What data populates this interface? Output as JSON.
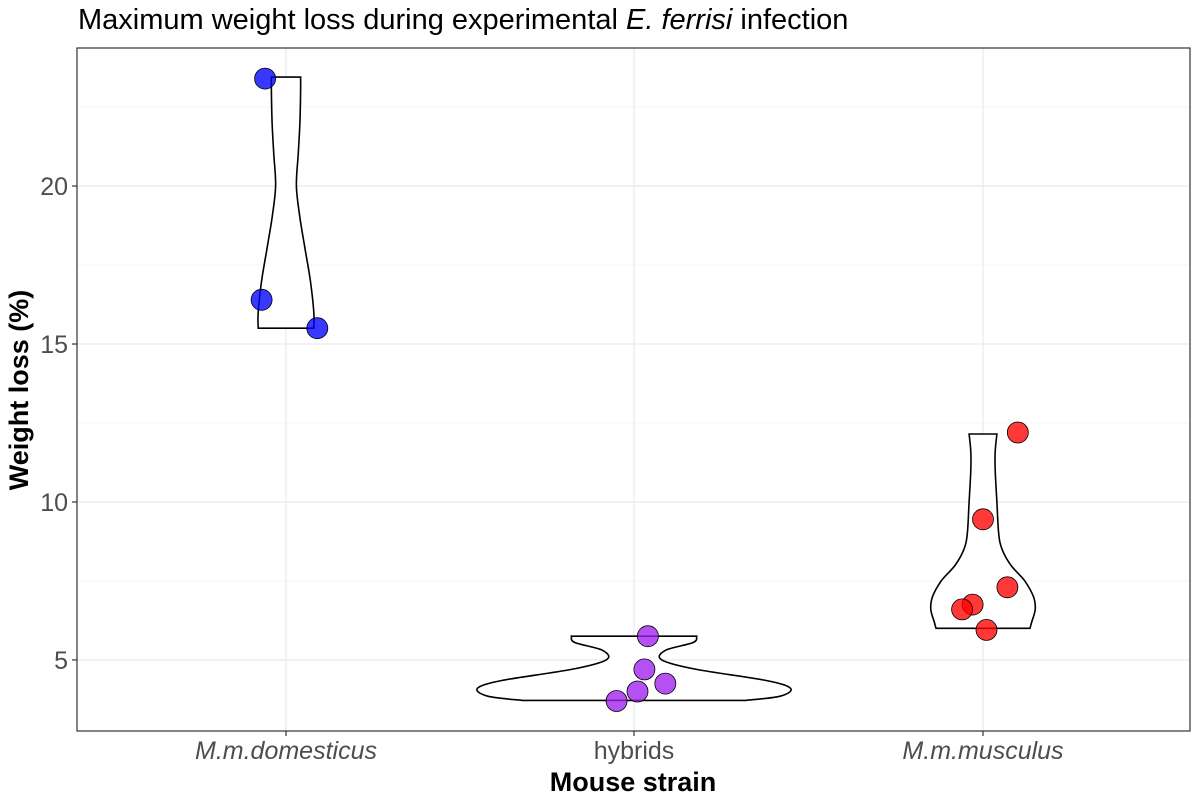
{
  "chart_data": {
    "type": "violin",
    "title_parts": [
      {
        "text": "Maximum weight loss during experimental ",
        "italic": false
      },
      {
        "text": "E. ferrisi",
        "italic": true
      },
      {
        "text": " infection",
        "italic": false
      }
    ],
    "xlabel": "Mouse strain",
    "ylabel": "Weight loss (%)",
    "ylim": [
      2.75,
      24.37
    ],
    "y_ticks": [
      5,
      10,
      15,
      20
    ],
    "y_tick_labels": [
      "5",
      "10",
      "15",
      "20"
    ],
    "grid": true,
    "legend": "none",
    "categories": [
      {
        "label": "M.m.domesticus",
        "italic": true,
        "color": "#0000ff"
      },
      {
        "label": "hybrids",
        "italic": false,
        "color": "#a020f0"
      },
      {
        "label": "M.m.musculus",
        "italic": true,
        "color": "#ff0000"
      }
    ],
    "series": [
      {
        "category": "M.m.domesticus",
        "points": [
          {
            "y": 23.4,
            "x_jitter": -0.06
          },
          {
            "y": 16.4,
            "x_jitter": -0.07
          },
          {
            "y": 15.5,
            "x_jitter": 0.09
          }
        ],
        "violin_profile": [
          {
            "y": 15.5,
            "w": 0.08
          },
          {
            "y": 16.0,
            "w": 0.08
          },
          {
            "y": 17.0,
            "w": 0.07
          },
          {
            "y": 18.0,
            "w": 0.055
          },
          {
            "y": 19.0,
            "w": 0.04
          },
          {
            "y": 20.0,
            "w": 0.03
          },
          {
            "y": 21.0,
            "w": 0.035
          },
          {
            "y": 22.0,
            "w": 0.04
          },
          {
            "y": 23.0,
            "w": 0.042
          },
          {
            "y": 23.45,
            "w": 0.042
          }
        ]
      },
      {
        "category": "hybrids",
        "points": [
          {
            "y": 5.75,
            "x_jitter": 0.04
          },
          {
            "y": 4.7,
            "x_jitter": 0.03
          },
          {
            "y": 4.25,
            "x_jitter": 0.09
          },
          {
            "y": 4.0,
            "x_jitter": 0.01
          },
          {
            "y": 3.7,
            "x_jitter": -0.05
          }
        ],
        "violin_profile": [
          {
            "y": 3.72,
            "w": 0.32
          },
          {
            "y": 3.85,
            "w": 0.42
          },
          {
            "y": 4.1,
            "w": 0.45
          },
          {
            "y": 4.35,
            "w": 0.38
          },
          {
            "y": 4.7,
            "w": 0.18
          },
          {
            "y": 5.0,
            "w": 0.08
          },
          {
            "y": 5.3,
            "w": 0.09
          },
          {
            "y": 5.55,
            "w": 0.17
          },
          {
            "y": 5.75,
            "w": 0.18
          }
        ]
      },
      {
        "category": "M.m.musculus",
        "points": [
          {
            "y": 12.2,
            "x_jitter": 0.1
          },
          {
            "y": 9.45,
            "x_jitter": 0.0
          },
          {
            "y": 7.3,
            "x_jitter": 0.07
          },
          {
            "y": 6.75,
            "x_jitter": -0.03
          },
          {
            "y": 6.6,
            "x_jitter": -0.06
          },
          {
            "y": 5.95,
            "x_jitter": 0.01
          }
        ],
        "violin_profile": [
          {
            "y": 6.0,
            "w": 0.135
          },
          {
            "y": 6.2,
            "w": 0.14
          },
          {
            "y": 6.6,
            "w": 0.15
          },
          {
            "y": 7.0,
            "w": 0.145
          },
          {
            "y": 7.5,
            "w": 0.12
          },
          {
            "y": 8.0,
            "w": 0.08
          },
          {
            "y": 8.5,
            "w": 0.055
          },
          {
            "y": 9.0,
            "w": 0.045
          },
          {
            "y": 10.0,
            "w": 0.04
          },
          {
            "y": 11.0,
            "w": 0.035
          },
          {
            "y": 11.6,
            "w": 0.035
          },
          {
            "y": 12.15,
            "w": 0.04
          }
        ]
      }
    ]
  }
}
